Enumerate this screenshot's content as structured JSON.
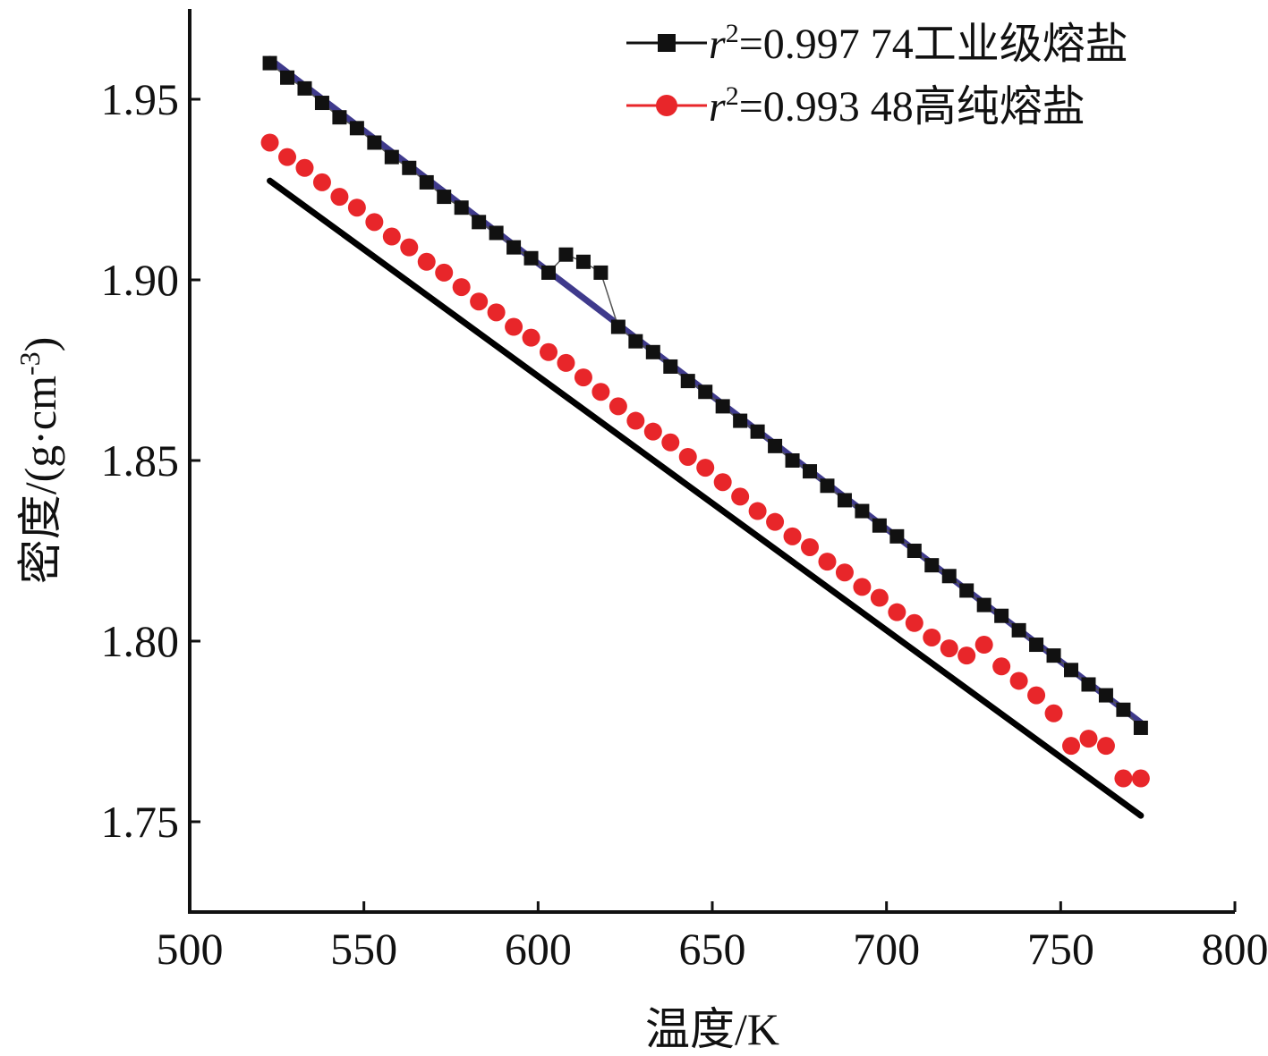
{
  "chart_data": {
    "type": "scatter",
    "title": "",
    "xlabel": "温度/K",
    "ylabel": "密度/(g·cm",
    "ylabel_sup": "-3",
    "ylabel_close": ")",
    "xlim": [
      500,
      800
    ],
    "ylim": [
      1.725,
      1.975
    ],
    "x_ticks": [
      "500",
      "550",
      "600",
      "650",
      "700",
      "750",
      "800"
    ],
    "y_ticks": [
      "1.75",
      "1.80",
      "1.85",
      "1.90",
      "1.95"
    ],
    "grid": false,
    "legend_position": "top-right",
    "series": [
      {
        "name": "工业级熔盐",
        "r2_label": "r",
        "r2_sup": "2",
        "r2_value": "=0.997 74",
        "marker": "square",
        "color": "#111111",
        "fit_color": "#3f3a8c",
        "x": [
          523,
          528,
          533,
          538,
          543,
          548,
          553,
          558,
          563,
          568,
          573,
          578,
          583,
          588,
          593,
          598,
          603,
          608,
          613,
          618,
          623,
          628,
          633,
          638,
          643,
          648,
          653,
          658,
          663,
          668,
          673,
          678,
          683,
          688,
          693,
          698,
          703,
          708,
          713,
          718,
          723,
          728,
          733,
          738,
          743,
          748,
          753,
          758,
          763,
          768,
          773
        ],
        "y": [
          1.96,
          1.956,
          1.953,
          1.949,
          1.945,
          1.942,
          1.938,
          1.934,
          1.931,
          1.927,
          1.923,
          1.92,
          1.916,
          1.913,
          1.909,
          1.906,
          1.902,
          1.907,
          1.905,
          1.902,
          1.887,
          1.883,
          1.88,
          1.876,
          1.872,
          1.869,
          1.865,
          1.861,
          1.858,
          1.854,
          1.85,
          1.847,
          1.843,
          1.839,
          1.836,
          1.832,
          1.829,
          1.825,
          1.821,
          1.818,
          1.814,
          1.81,
          1.807,
          1.803,
          1.799,
          1.796,
          1.792,
          1.788,
          1.785,
          1.781,
          1.776
        ]
      },
      {
        "name": "高纯熔盐",
        "r2_label": "r",
        "r2_sup": "2",
        "r2_value": "=0.993 48",
        "marker": "circle",
        "color": "#e8262a",
        "fit_color": "#000000",
        "x": [
          523,
          528,
          533,
          538,
          543,
          548,
          553,
          558,
          563,
          568,
          573,
          578,
          583,
          588,
          593,
          598,
          603,
          608,
          613,
          618,
          623,
          628,
          633,
          638,
          643,
          648,
          653,
          658,
          663,
          668,
          673,
          678,
          683,
          688,
          693,
          698,
          703,
          708,
          713,
          718,
          723,
          728,
          733,
          738,
          743,
          748,
          753,
          758,
          763,
          768,
          773
        ],
        "y": [
          1.938,
          1.934,
          1.931,
          1.927,
          1.923,
          1.92,
          1.916,
          1.912,
          1.909,
          1.905,
          1.902,
          1.898,
          1.894,
          1.891,
          1.887,
          1.884,
          1.88,
          1.877,
          1.873,
          1.869,
          1.865,
          1.861,
          1.858,
          1.855,
          1.851,
          1.848,
          1.844,
          1.84,
          1.836,
          1.833,
          1.829,
          1.826,
          1.822,
          1.819,
          1.815,
          1.812,
          1.808,
          1.805,
          1.801,
          1.798,
          1.796,
          1.799,
          1.793,
          1.789,
          1.785,
          1.78,
          1.771,
          1.773,
          1.771,
          1.762,
          1.762
        ]
      }
    ]
  }
}
